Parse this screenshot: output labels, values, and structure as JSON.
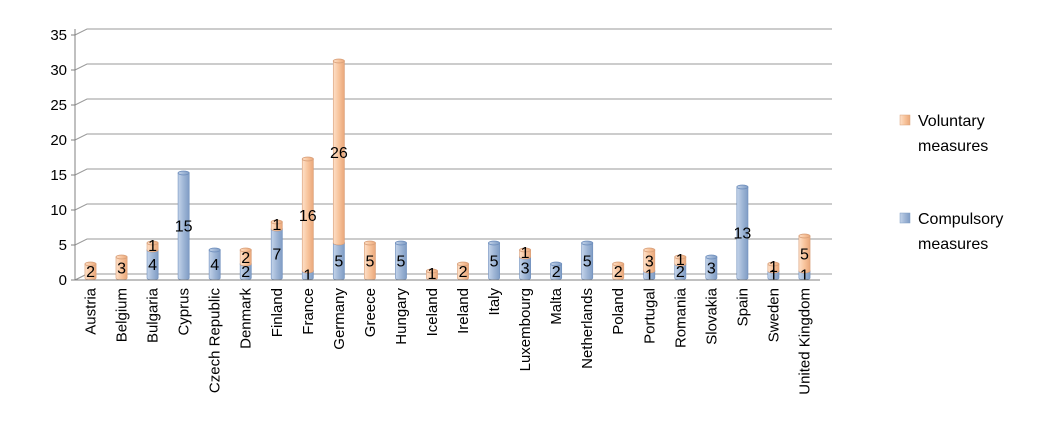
{
  "chart_data": {
    "type": "bar",
    "stacked": true,
    "categories": [
      "Austria",
      "Belgium",
      "Bulgaria",
      "Cyprus",
      "Czech Republic",
      "Denmark",
      "Finland",
      "France",
      "Germany",
      "Greece",
      "Hungary",
      "Iceland",
      "Ireland",
      "Italy",
      "Luxembourg",
      "Malta",
      "Netherlands",
      "Poland",
      "Portugal",
      "Romania",
      "Slovakia",
      "Spain",
      "Sweden",
      "United Kingdom"
    ],
    "series": [
      {
        "name": "Compulsory measures",
        "color": "#a6bcd9",
        "values": [
          0,
          0,
          4,
          15,
          4,
          2,
          7,
          1,
          5,
          0,
          5,
          0,
          0,
          5,
          3,
          2,
          5,
          0,
          1,
          2,
          3,
          13,
          1,
          1
        ]
      },
      {
        "name": "Voluntary measures",
        "color": "#f9c8a4",
        "values": [
          2,
          3,
          1,
          0,
          0,
          2,
          1,
          16,
          26,
          5,
          0,
          1,
          2,
          0,
          1,
          0,
          0,
          2,
          3,
          1,
          0,
          0,
          1,
          5
        ]
      }
    ],
    "ylim": [
      0,
      35
    ],
    "yticks": [
      0,
      5,
      10,
      15,
      20,
      25,
      30,
      35
    ],
    "grid": true,
    "legend": "right",
    "title": "",
    "xlabel": "",
    "ylabel": ""
  },
  "legend": {
    "voluntary_line1": "Voluntary",
    "voluntary_line2": "measures",
    "compulsory_line1": "Compulsory",
    "compulsory_line2": "measures"
  }
}
